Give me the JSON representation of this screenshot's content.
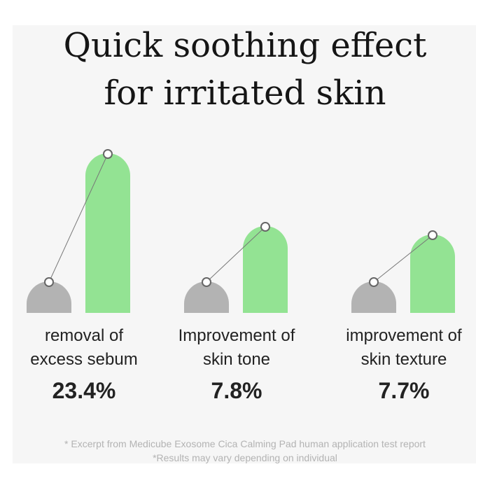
{
  "title_lines": [
    "Quick soothing effect",
    "for irritated skin"
  ],
  "colors": {
    "before_bar": "#b3b3b3",
    "after_bar": "#93e393",
    "connector": "#777777",
    "marker_fill": "#ffffff",
    "marker_stroke": "#666666"
  },
  "chart_data": {
    "type": "bar",
    "title": "Quick soothing effect for irritated skin",
    "categories": [
      {
        "label_lines": [
          "removal of",
          "excess sebum"
        ],
        "value_text": "23.4%"
      },
      {
        "label_lines": [
          "Improvement of",
          "skin tone"
        ],
        "value_text": "7.8%"
      },
      {
        "label_lines": [
          "improvement of",
          "skin texture"
        ],
        "value_text": "7.7%"
      }
    ],
    "series": [
      {
        "name": "",
        "values": [
          45,
          45,
          45
        ]
      },
      {
        "name": "",
        "values": [
          228,
          124,
          112
        ]
      }
    ],
    "improvement_percent": [
      23.4,
      7.8,
      7.7
    ],
    "ylim": [
      0,
      230
    ],
    "grid": false,
    "legend": "none"
  },
  "footnotes": [
    "* Excerpt from Medicube Exosome Cica Calming Pad human application test report",
    "*Results may vary depending on individual"
  ]
}
